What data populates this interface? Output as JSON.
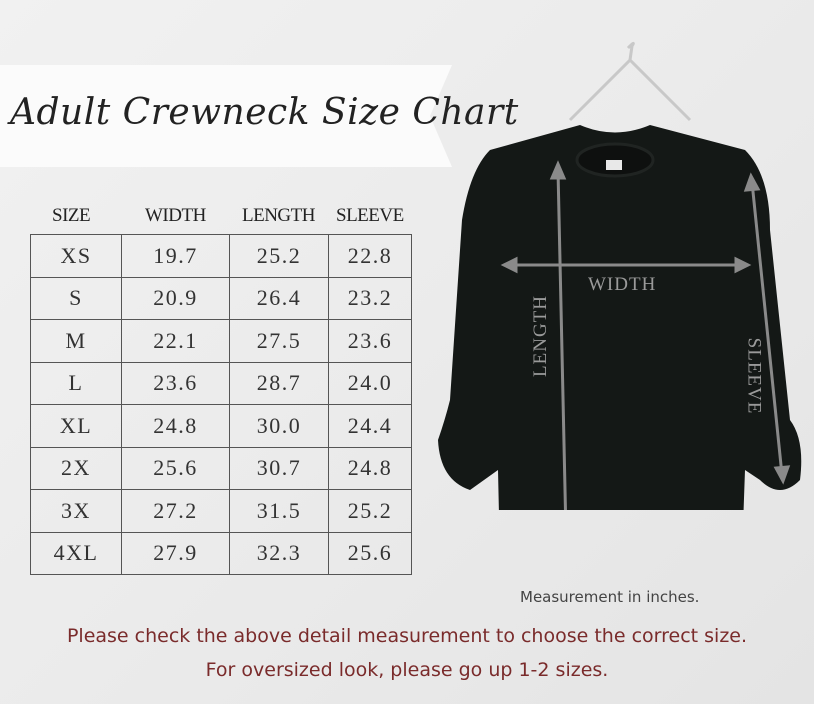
{
  "title": "Adult Crewneck Size Chart",
  "table": {
    "headers": [
      "SIZE",
      "WIDTH",
      "LENGTH",
      "SLEEVE"
    ],
    "rows": [
      [
        "XS",
        "19.7",
        "25.2",
        "22.8"
      ],
      [
        "S",
        "20.9",
        "26.4",
        "23.2"
      ],
      [
        "M",
        "22.1",
        "27.5",
        "23.6"
      ],
      [
        "L",
        "23.6",
        "28.7",
        "24.0"
      ],
      [
        "XL",
        "24.8",
        "30.0",
        "24.4"
      ],
      [
        "2X",
        "25.6",
        "30.7",
        "24.8"
      ],
      [
        "3X",
        "27.2",
        "31.5",
        "25.2"
      ],
      [
        "4XL",
        "27.9",
        "32.3",
        "25.6"
      ]
    ]
  },
  "diagram": {
    "width_label": "WIDTH",
    "length_label": "LENGTH",
    "sleeve_label": "SLEEVE",
    "shirt_color": "#141816",
    "arrow_color": "#8a8a8a"
  },
  "note": "Measurement in inches.",
  "footer": {
    "line1": "Please check the above detail measurement to choose the correct size.",
    "line2": "For oversized look,  please go up 1-2 sizes."
  }
}
